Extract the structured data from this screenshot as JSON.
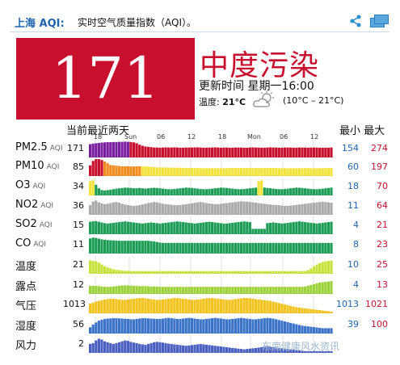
{
  "header": {
    "city": "上海 AQI:",
    "title": "实时空气质量指数（AQI）。"
  },
  "aqi": {
    "value": "171",
    "level": "中度污染",
    "updated": "更新时间 星期一16:00",
    "temp_label": "温度:",
    "temp_value": "21°C",
    "temp_range": "(10°C – 21°C)",
    "weather_icon": "partly-cloudy-icon",
    "color": "#c8102e"
  },
  "table": {
    "header_left": "当前最近两天",
    "header_right": "最小 最大",
    "time_labels": [
      "18",
      "Sun",
      "06",
      "12",
      "18",
      "Mon",
      "06",
      "12"
    ],
    "rows": [
      {
        "label": "PM2.5",
        "sub": "AQI",
        "current": "171",
        "min": "154",
        "max": "274",
        "values": [
          0.75,
          0.78,
          0.8,
          0.82,
          0.84,
          0.85,
          0.86,
          0.86,
          0.87,
          0.87,
          0.88,
          0.88,
          0.89,
          0.88,
          0.87,
          0.85,
          0.8,
          0.72,
          0.66,
          0.62,
          0.6,
          0.58,
          0.56,
          0.56,
          0.55,
          0.56,
          0.57,
          0.56,
          0.56,
          0.57,
          0.56,
          0.55,
          0.55,
          0.56,
          0.56,
          0.56,
          0.57,
          0.57,
          0.56,
          0.55,
          0.55,
          0.56,
          0.56,
          0.57,
          0.56,
          0.55,
          0.56,
          0.56,
          0.55,
          0.55,
          0.56,
          0.56,
          0.56,
          0.55,
          0.55,
          0.56,
          0.57,
          0.56,
          0.56,
          0.55,
          0.55,
          0.56,
          0.57,
          0.56,
          0.56,
          0.55,
          0.55,
          0.56,
          0.56,
          0.56,
          0.55,
          0.55,
          0.56,
          0.56,
          0.56,
          0.55,
          0.56,
          0.56,
          0.56,
          0.55,
          0.55,
          0.55,
          0.55,
          0.56
        ]
      },
      {
        "label": "PM10",
        "sub": "AQI",
        "current": "85",
        "min": "60",
        "max": "197",
        "values": [
          0.6,
          0.85,
          0.95,
          0.95,
          0.9,
          0.82,
          0.72,
          0.62,
          0.6,
          0.58,
          0.56,
          0.55,
          0.55,
          0.55,
          0.54,
          0.54,
          0.55,
          0.55,
          0.54,
          0.54,
          0.53,
          0.52,
          0.5,
          0.49,
          0.48,
          0.48,
          0.48,
          0.47,
          0.47,
          0.47,
          0.47,
          0.46,
          0.46,
          0.46,
          0.45,
          0.45,
          0.45,
          0.45,
          0.45,
          0.44,
          0.44,
          0.44,
          0.44,
          0.44,
          0.44,
          0.44,
          0.44,
          0.44,
          0.45,
          0.45,
          0.45,
          0.45,
          0.45,
          0.45,
          0.45,
          0.45,
          0.45,
          0.45,
          0.45,
          0.45,
          0.45,
          0.45,
          0.45,
          0.45,
          0.45,
          0.44,
          0.44,
          0.44,
          0.44,
          0.44,
          0.44,
          0.44,
          0.44,
          0.44,
          0.45,
          0.45,
          0.44,
          0.44,
          0.44,
          0.44,
          0.44,
          0.45,
          0.45,
          0.45
        ]
      },
      {
        "label": "O3",
        "sub": "AQI",
        "current": "34",
        "min": "18",
        "max": "70",
        "values": [
          0.8,
          0.85,
          0.6,
          0.4,
          0.3,
          0.28,
          0.3,
          0.32,
          0.35,
          0.38,
          0.4,
          0.42,
          0.44,
          0.43,
          0.42,
          0.4,
          0.4,
          0.42,
          0.4,
          0.38,
          0.4,
          0.42,
          0.43,
          0.42,
          0.4,
          0.38,
          0.36,
          0.35,
          0.35,
          0.36,
          0.38,
          0.4,
          0.42,
          0.44,
          0.43,
          0.42,
          0.4,
          0.38,
          0.36,
          0.35,
          0.35,
          0.36,
          0.38,
          0.4,
          0.42,
          0.44,
          0.43,
          0.42,
          0.4,
          0.38,
          0.36,
          0.35,
          0.35,
          0.36,
          0.38,
          0.4,
          0.42,
          0.44,
          0.8,
          0.85,
          0.44,
          0.42,
          0.4,
          0.38,
          0.36,
          0.35,
          0.35,
          0.36,
          0.38,
          0.4,
          0.42,
          0.44,
          0.43,
          0.42,
          0.4,
          0.38,
          0.36,
          0.35,
          0.35,
          0.36,
          0.38,
          0.4,
          0.42,
          0.44
        ]
      },
      {
        "label": "NO2",
        "sub": "AQI",
        "current": "36",
        "min": "11",
        "max": "64",
        "values": [
          0.55,
          0.75,
          0.8,
          0.7,
          0.65,
          0.6,
          0.62,
          0.66,
          0.7,
          0.72,
          0.68,
          0.62,
          0.58,
          0.55,
          0.52,
          0.5,
          0.52,
          0.55,
          0.58,
          0.62,
          0.66,
          0.68,
          0.72,
          0.7,
          0.66,
          0.62,
          0.6,
          0.58,
          0.56,
          0.55,
          0.54,
          0.55,
          0.58,
          0.6,
          0.62,
          0.65,
          0.68,
          0.7,
          0.72,
          0.7,
          0.66,
          0.64,
          0.62,
          0.6,
          0.6,
          0.62,
          0.64,
          0.66,
          0.68,
          0.7,
          0.72,
          0.74,
          0.76,
          0.75,
          0.74,
          0.72,
          0.7,
          0.68,
          0.66,
          0.64,
          0.62,
          0.6,
          0.58,
          0.56,
          0.55,
          0.54,
          0.52,
          0.5,
          0.5,
          0.52,
          0.54,
          0.56,
          0.58,
          0.6,
          0.62,
          0.64,
          0.66,
          0.68,
          0.7,
          0.72,
          0.74,
          0.72,
          0.7,
          0.68
        ]
      },
      {
        "label": "SO2",
        "sub": "AQI",
        "current": "15",
        "min": "4",
        "max": "21",
        "values": [
          0.7,
          0.72,
          0.74,
          0.7,
          0.66,
          0.62,
          0.6,
          0.62,
          0.64,
          0.66,
          0.68,
          0.7,
          0.72,
          0.7,
          0.68,
          0.66,
          0.64,
          0.62,
          0.6,
          0.62,
          0.64,
          0.66,
          0.64,
          0.62,
          0.6,
          0.62,
          0.64,
          0.66,
          0.68,
          0.7,
          0.72,
          0.7,
          0.68,
          0.66,
          0.64,
          0.62,
          0.6,
          0.62,
          0.64,
          0.66,
          0.68,
          0.7,
          0.68,
          0.66,
          0.64,
          0.62,
          0.6,
          0.6,
          0.62,
          0.64,
          0.66,
          0.68,
          0.7,
          0.72,
          0.7,
          0.68,
          0.3,
          0.3,
          0.3,
          0.3,
          0.3,
          0.62,
          0.64,
          0.66,
          0.64,
          0.62,
          0.6,
          0.62,
          0.64,
          0.66,
          0.68,
          0.7,
          0.72,
          0.7,
          0.68,
          0.66,
          0.64,
          0.62,
          0.6,
          0.62,
          0.64,
          0.66,
          0.68,
          0.7
        ]
      },
      {
        "label": "CO",
        "sub": "AQI",
        "current": "11",
        "min": "8",
        "max": "23",
        "values": [
          0.85,
          0.9,
          0.88,
          0.84,
          0.8,
          0.78,
          0.76,
          0.75,
          0.74,
          0.73,
          0.72,
          0.72,
          0.72,
          0.72,
          0.72,
          0.72,
          0.72,
          0.72,
          0.72,
          0.72,
          0.72,
          0.7,
          0.68,
          0.65,
          0.62,
          0.6,
          0.6,
          0.6,
          0.6,
          0.6,
          0.6,
          0.6,
          0.6,
          0.6,
          0.6,
          0.6,
          0.6,
          0.6,
          0.6,
          0.6,
          0.6,
          0.6,
          0.6,
          0.6,
          0.6,
          0.6,
          0.6,
          0.6,
          0.6,
          0.6,
          0.6,
          0.6,
          0.6,
          0.6,
          0.6,
          0.6,
          0.6,
          0.6,
          0.6,
          0.6,
          0.6,
          0.6,
          0.6,
          0.6,
          0.6,
          0.6,
          0.6,
          0.6,
          0.6,
          0.6,
          0.6,
          0.6,
          0.6,
          0.6,
          0.6,
          0.6,
          0.6,
          0.6,
          0.6,
          0.6,
          0.6,
          0.6,
          0.6,
          0.6
        ]
      },
      {
        "label": "温度",
        "sub": "",
        "current": "21",
        "min": "10",
        "max": "25",
        "values": [
          0.75,
          0.72,
          0.7,
          0.62,
          0.52,
          0.42,
          0.35,
          0.3,
          0.25,
          0.22,
          0.2,
          0.18,
          0.17,
          0.16,
          0.15,
          0.15,
          0.15,
          0.15,
          0.15,
          0.15,
          0.15,
          0.15,
          0.15,
          0.15,
          0.15,
          0.15,
          0.15,
          0.15,
          0.15,
          0.15,
          0.15,
          0.15,
          0.15,
          0.15,
          0.15,
          0.15,
          0.15,
          0.15,
          0.15,
          0.15,
          0.15,
          0.15,
          0.15,
          0.15,
          0.15,
          0.15,
          0.15,
          0.15,
          0.15,
          0.15,
          0.15,
          0.15,
          0.15,
          0.15,
          0.15,
          0.15,
          0.15,
          0.15,
          0.15,
          0.15,
          0.15,
          0.15,
          0.15,
          0.15,
          0.15,
          0.15,
          0.15,
          0.15,
          0.15,
          0.15,
          0.15,
          0.15,
          0.15,
          0.15,
          0.15,
          0.2,
          0.3,
          0.42,
          0.52,
          0.6,
          0.66,
          0.7,
          0.72,
          0.74
        ]
      },
      {
        "label": "露点",
        "sub": "",
        "current": "12",
        "min": "4",
        "max": "13",
        "values": [
          0.45,
          0.46,
          0.45,
          0.44,
          0.42,
          0.4,
          0.4,
          0.4,
          0.42,
          0.44,
          0.46,
          0.48,
          0.48,
          0.48,
          0.47,
          0.46,
          0.45,
          0.44,
          0.44,
          0.44,
          0.43,
          0.42,
          0.42,
          0.41,
          0.4,
          0.4,
          0.4,
          0.4,
          0.4,
          0.4,
          0.4,
          0.4,
          0.4,
          0.4,
          0.4,
          0.4,
          0.4,
          0.4,
          0.4,
          0.4,
          0.4,
          0.4,
          0.4,
          0.4,
          0.4,
          0.4,
          0.4,
          0.4,
          0.4,
          0.4,
          0.4,
          0.4,
          0.4,
          0.4,
          0.4,
          0.4,
          0.4,
          0.4,
          0.4,
          0.4,
          0.4,
          0.4,
          0.4,
          0.4,
          0.4,
          0.4,
          0.4,
          0.4,
          0.4,
          0.4,
          0.4,
          0.4,
          0.4,
          0.4,
          0.42,
          0.46,
          0.5,
          0.55,
          0.6,
          0.64,
          0.66,
          0.68,
          0.7,
          0.72
        ]
      },
      {
        "label": "气压",
        "sub": "",
        "current": "1013",
        "min": "1013",
        "max": "1021",
        "values": [
          0.55,
          0.6,
          0.66,
          0.7,
          0.74,
          0.78,
          0.8,
          0.82,
          0.82,
          0.8,
          0.78,
          0.76,
          0.76,
          0.78,
          0.8,
          0.82,
          0.84,
          0.86,
          0.86,
          0.84,
          0.82,
          0.8,
          0.78,
          0.76,
          0.76,
          0.78,
          0.8,
          0.82,
          0.84,
          0.86,
          0.86,
          0.84,
          0.82,
          0.8,
          0.78,
          0.76,
          0.76,
          0.78,
          0.8,
          0.82,
          0.84,
          0.86,
          0.86,
          0.84,
          0.82,
          0.8,
          0.78,
          0.76,
          0.76,
          0.78,
          0.8,
          0.82,
          0.84,
          0.86,
          0.86,
          0.84,
          0.82,
          0.8,
          0.78,
          0.76,
          0.74,
          0.72,
          0.7,
          0.66,
          0.62,
          0.58,
          0.54,
          0.5,
          0.46,
          0.42,
          0.38,
          0.35,
          0.32,
          0.3,
          0.28,
          0.26,
          0.24,
          0.22,
          0.2,
          0.18,
          0.16,
          0.14,
          0.12,
          0.1
        ]
      },
      {
        "label": "湿度",
        "sub": "",
        "current": "56",
        "min": "39",
        "max": "100",
        "values": [
          0.35,
          0.5,
          0.62,
          0.72,
          0.78,
          0.82,
          0.84,
          0.85,
          0.86,
          0.86,
          0.85,
          0.84,
          0.83,
          0.82,
          0.8,
          0.8,
          0.82,
          0.84,
          0.86,
          0.86,
          0.85,
          0.84,
          0.83,
          0.82,
          0.82,
          0.84,
          0.86,
          0.88,
          0.86,
          0.84,
          0.82,
          0.82,
          0.84,
          0.86,
          0.88,
          0.86,
          0.84,
          0.82,
          0.8,
          0.8,
          0.82,
          0.84,
          0.86,
          0.88,
          0.86,
          0.84,
          0.82,
          0.8,
          0.8,
          0.82,
          0.84,
          0.86,
          0.88,
          0.86,
          0.84,
          0.82,
          0.8,
          0.8,
          0.82,
          0.84,
          0.86,
          0.88,
          0.86,
          0.84,
          0.8,
          0.76,
          0.72,
          0.68,
          0.64,
          0.6,
          0.56,
          0.52,
          0.48,
          0.44,
          0.42,
          0.4,
          0.38,
          0.36,
          0.34,
          0.32,
          0.3,
          0.3,
          0.3,
          0.3
        ]
      },
      {
        "label": "风力",
        "sub": "",
        "current": "2",
        "min": "",
        "max": "",
        "values": [
          0.5,
          0.55,
          0.7,
          0.8,
          0.75,
          0.65,
          0.6,
          0.55,
          0.5,
          0.55,
          0.6,
          0.65,
          0.7,
          0.68,
          0.62,
          0.58,
          0.55,
          0.5,
          0.48,
          0.45,
          0.5,
          0.55,
          0.6,
          0.62,
          0.6,
          0.58,
          0.55,
          0.52,
          0.5,
          0.48,
          0.46,
          0.44,
          0.42,
          0.4,
          0.42,
          0.44,
          0.46,
          0.48,
          0.5,
          0.48,
          0.46,
          0.44,
          0.42,
          0.4,
          0.38,
          0.36,
          0.34,
          0.32,
          0.3,
          0.28,
          0.26,
          0.24,
          0.22,
          0.2,
          0.22,
          0.24,
          0.26,
          0.28,
          0.3,
          0.32,
          0.34,
          0.36,
          0.34,
          0.32,
          0.3,
          0.28,
          0.26,
          0.24,
          0.22,
          0.2,
          0.18,
          0.16,
          0.14,
          0.12,
          0.1,
          0.1,
          0.1,
          0.1,
          0.1,
          0.1,
          0.1,
          0.1,
          0.1,
          0.1
        ]
      }
    ]
  },
  "colors": {
    "pm25": [
      "#7a1fa0",
      "#c8102e"
    ],
    "pm10": [
      "#c8102e",
      "#f28a1d",
      "#f3e23a"
    ],
    "o3": [
      "#1c9c55",
      "#f3e23a"
    ],
    "no2": "#aaaaaa",
    "so2": "#1c9c55",
    "co": "#1c9c55",
    "temp": "#c7e23a",
    "dew": "#9bd23a",
    "pressure": "#f2c21d",
    "humidity": "#3a73c8",
    "wind": "#4a5fc0"
  },
  "watermark": "东南健康风水资讯"
}
